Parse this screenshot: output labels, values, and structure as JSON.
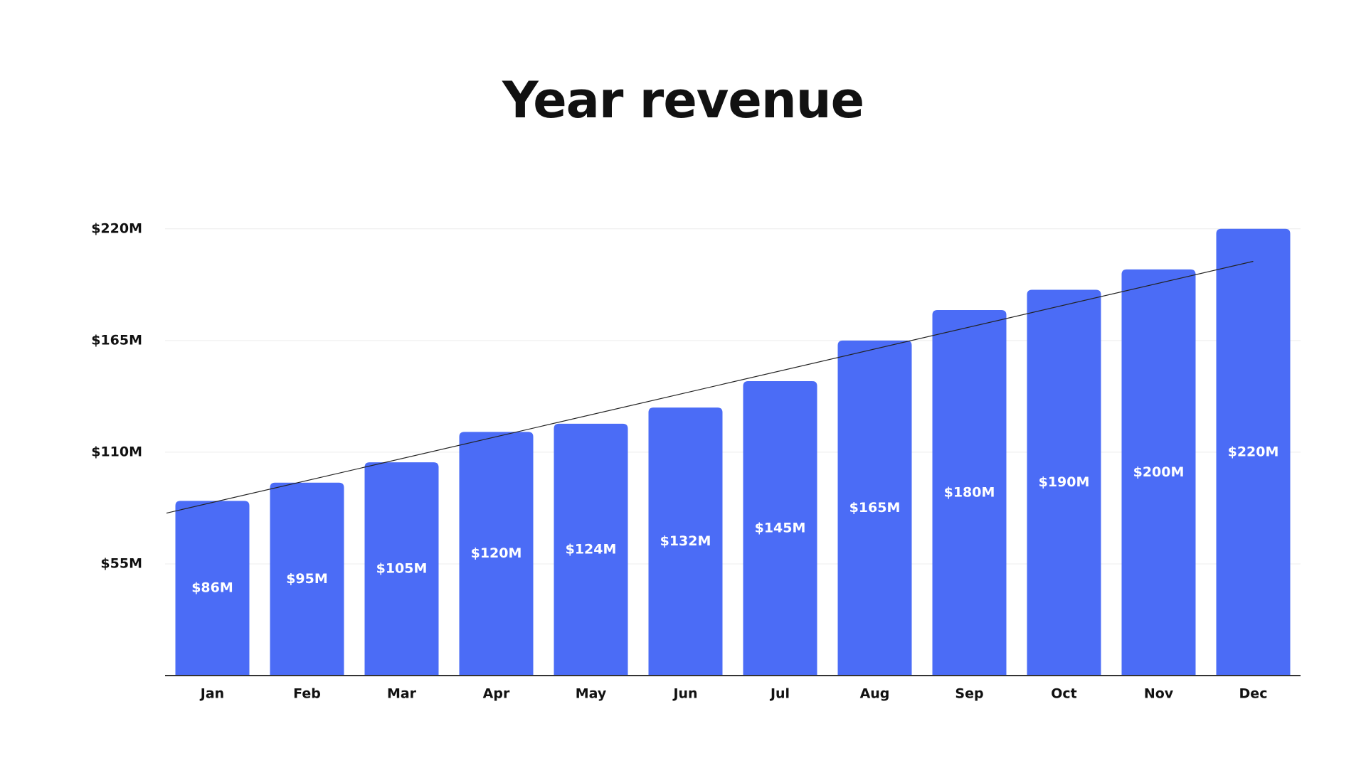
{
  "chart_data": {
    "type": "bar",
    "title": "Year revenue",
    "xlabel": "",
    "ylabel": "",
    "categories": [
      "Jan",
      "Feb",
      "Mar",
      "Apr",
      "May",
      "Jun",
      "Jul",
      "Aug",
      "Sep",
      "Oct",
      "Nov",
      "Dec"
    ],
    "values": [
      86,
      95,
      105,
      120,
      124,
      132,
      145,
      165,
      180,
      190,
      200,
      220
    ],
    "value_labels": [
      "$86M",
      "$95M",
      "$105M",
      "$120M",
      "$124M",
      "$132M",
      "$145M",
      "$165M",
      "$180M",
      "$190M",
      "$200M",
      "$220M"
    ],
    "y_ticks": [
      55,
      110,
      165,
      220
    ],
    "y_tick_labels": [
      "$55M",
      "$110M",
      "$165M",
      "$220M"
    ],
    "ylim": [
      0,
      228
    ],
    "trendline": {
      "start": 80,
      "end": 204
    },
    "grid": true,
    "legend": "none",
    "colors": {
      "bar": "#4b6cf6",
      "grid": "#ececec",
      "axis": "#333333",
      "trendline": "#222222",
      "bar_label": "#ffffff"
    }
  }
}
